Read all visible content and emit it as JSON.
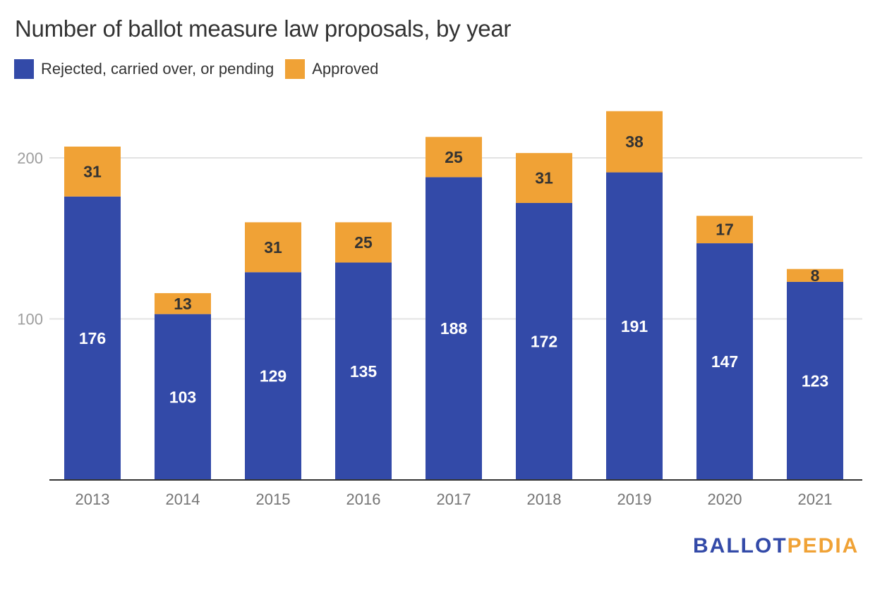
{
  "chart_data": {
    "type": "bar",
    "stacked": true,
    "title": "Number of ballot measure law proposals, by year",
    "xlabel": "",
    "ylabel": "",
    "categories": [
      "2013",
      "2014",
      "2015",
      "2016",
      "2017",
      "2018",
      "2019",
      "2020",
      "2021"
    ],
    "series": [
      {
        "name": "Rejected, carried over, or pending",
        "color": "#334aa8",
        "label_color": "#ffffff",
        "values": [
          176,
          103,
          129,
          135,
          188,
          172,
          191,
          147,
          123
        ]
      },
      {
        "name": "Approved",
        "color": "#f0a236",
        "label_color": "#333333",
        "values": [
          31,
          13,
          31,
          25,
          25,
          31,
          38,
          17,
          8
        ]
      }
    ],
    "yticks": [
      100,
      200
    ],
    "ylim": [
      0,
      230
    ],
    "grid": true,
    "legend_position": "top-left"
  },
  "branding": {
    "logo_part1": "BALLOT",
    "logo_part2": "PEDIA",
    "logo_color1": "#334aa8",
    "logo_color2": "#f0a236"
  }
}
